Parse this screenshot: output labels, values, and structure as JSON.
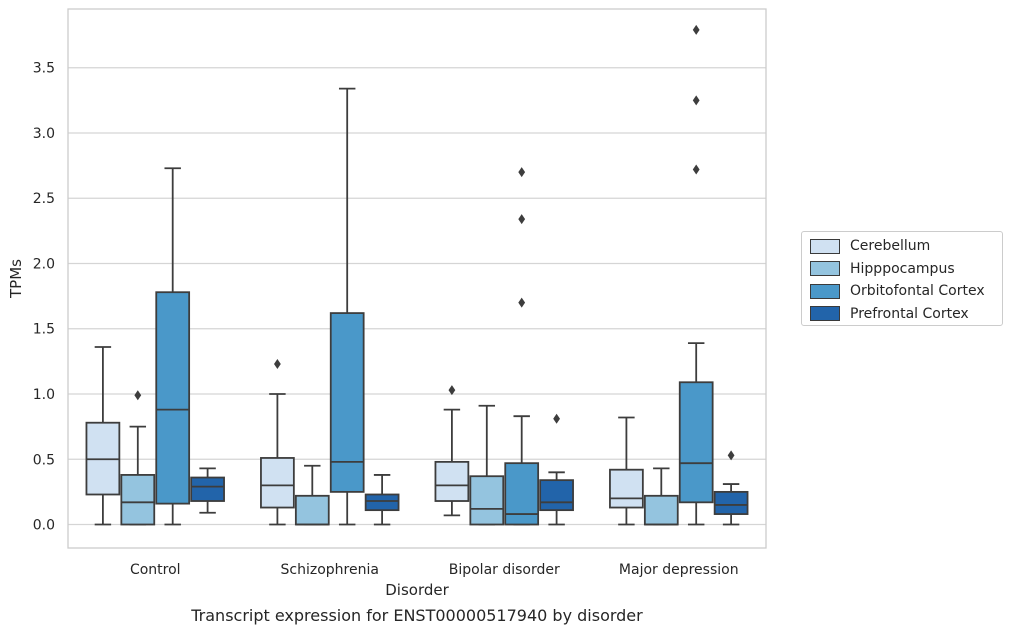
{
  "caption": "Transcript expression for ENST00000517940 by disorder",
  "chart_data": {
    "type": "box",
    "xlabel": "Disorder",
    "ylabel": "TPMs",
    "ylim": [
      -0.18,
      3.95
    ],
    "yticks": [
      0.0,
      0.5,
      1.0,
      1.5,
      2.0,
      2.5,
      3.0,
      3.5
    ],
    "ytick_labels": [
      "0.0",
      "0.5",
      "1.0",
      "1.5",
      "2.0",
      "2.5",
      "3.0",
      "3.5"
    ],
    "grid": "horizontal",
    "legend_position": "right",
    "categories": [
      "Control",
      "Schizophrenia",
      "Bipolar disorder",
      "Major depression"
    ],
    "series": [
      {
        "name": "Cerebellum",
        "color": "#d0e1f2",
        "boxes": [
          {
            "q1": 0.23,
            "median": 0.5,
            "q3": 0.78,
            "whisker_low": 0.0,
            "whisker_high": 1.36,
            "outliers": []
          },
          {
            "q1": 0.13,
            "median": 0.3,
            "q3": 0.51,
            "whisker_low": 0.0,
            "whisker_high": 1.0,
            "outliers": [
              1.23
            ]
          },
          {
            "q1": 0.18,
            "median": 0.3,
            "q3": 0.48,
            "whisker_low": 0.07,
            "whisker_high": 0.88,
            "outliers": [
              1.03
            ]
          },
          {
            "q1": 0.13,
            "median": 0.2,
            "q3": 0.42,
            "whisker_low": 0.0,
            "whisker_high": 0.82,
            "outliers": []
          }
        ]
      },
      {
        "name": "Hipppocampus",
        "color": "#94c4df",
        "boxes": [
          {
            "q1": 0.0,
            "median": 0.17,
            "q3": 0.38,
            "whisker_low": 0.0,
            "whisker_high": 0.75,
            "outliers": [
              0.99
            ]
          },
          {
            "q1": 0.0,
            "median": 0.0,
            "q3": 0.22,
            "whisker_low": 0.0,
            "whisker_high": 0.45,
            "outliers": []
          },
          {
            "q1": 0.0,
            "median": 0.12,
            "q3": 0.37,
            "whisker_low": 0.0,
            "whisker_high": 0.91,
            "outliers": []
          },
          {
            "q1": 0.0,
            "median": 0.0,
            "q3": 0.22,
            "whisker_low": 0.0,
            "whisker_high": 0.43,
            "outliers": []
          }
        ]
      },
      {
        "name": "Orbitofontal Cortex",
        "color": "#4a98c9",
        "boxes": [
          {
            "q1": 0.16,
            "median": 0.88,
            "q3": 1.78,
            "whisker_low": 0.0,
            "whisker_high": 2.73,
            "outliers": []
          },
          {
            "q1": 0.25,
            "median": 0.48,
            "q3": 1.62,
            "whisker_low": 0.0,
            "whisker_high": 3.34,
            "outliers": []
          },
          {
            "q1": 0.0,
            "median": 0.08,
            "q3": 0.47,
            "whisker_low": 0.0,
            "whisker_high": 0.83,
            "outliers": [
              1.7,
              2.34,
              2.7
            ]
          },
          {
            "q1": 0.17,
            "median": 0.47,
            "q3": 1.09,
            "whisker_low": 0.0,
            "whisker_high": 1.39,
            "outliers": [
              2.72,
              3.25,
              3.79
            ]
          }
        ]
      },
      {
        "name": "Prefrontal Cortex",
        "color": "#2264aa",
        "boxes": [
          {
            "q1": 0.18,
            "median": 0.29,
            "q3": 0.36,
            "whisker_low": 0.09,
            "whisker_high": 0.43,
            "outliers": []
          },
          {
            "q1": 0.11,
            "median": 0.18,
            "q3": 0.23,
            "whisker_low": 0.0,
            "whisker_high": 0.38,
            "outliers": []
          },
          {
            "q1": 0.11,
            "median": 0.17,
            "q3": 0.34,
            "whisker_low": 0.0,
            "whisker_high": 0.4,
            "outliers": [
              0.81
            ]
          },
          {
            "q1": 0.08,
            "median": 0.15,
            "q3": 0.25,
            "whisker_low": 0.0,
            "whisker_high": 0.31,
            "outliers": [
              0.53
            ]
          }
        ]
      }
    ]
  }
}
